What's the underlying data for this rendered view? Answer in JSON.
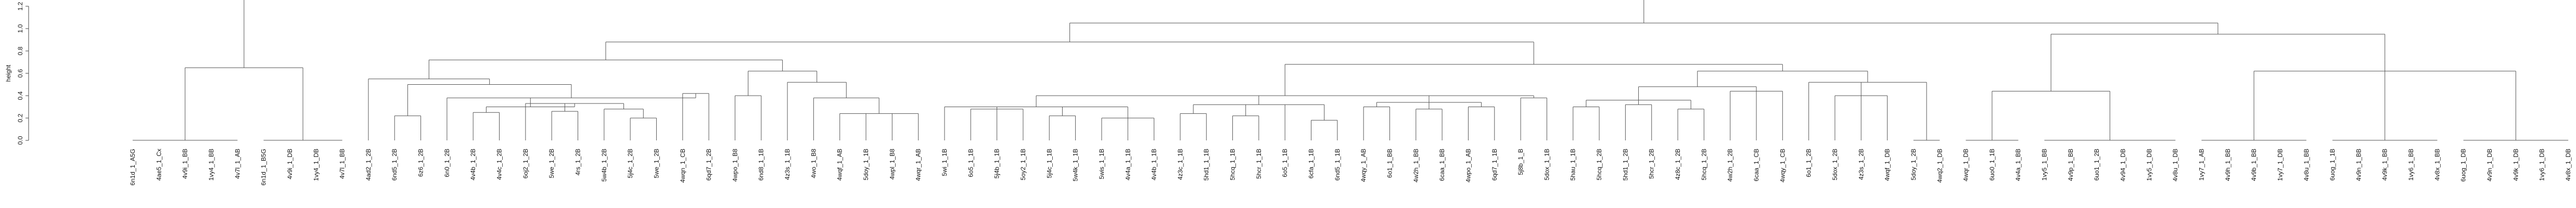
{
  "chart_data": {
    "type": "dendrogram",
    "ylabel": "height",
    "ylim": [
      0,
      1.2
    ],
    "yticks": [
      0.0,
      0.2,
      0.4,
      0.6,
      0.8,
      1.0,
      1.2
    ],
    "leaves": [
      "6n1d_1_A5G",
      "4ae5_1_Cx",
      "4v9i_1_BB",
      "1vy4_1_BB",
      "4v7l_1_AB",
      "6n1d_1_B5G",
      "4v9i_1_DB",
      "1vy4_1_DB",
      "4v7l_1_BB",
      "4ad2_1_2B",
      "6nd5_1_2B",
      "6z6_1_2B",
      "6n0_1_2B",
      "4v4b_1_2B",
      "4v4c_1_2B",
      "6oj2_1_2B",
      "5we_1_2B",
      "4rs_1_2B",
      "5w4b_1_2B",
      "5j4c_1_2B",
      "5we_1_2B",
      "4wqn_1_CB",
      "6qd7_1_2B",
      "4wpo_1_B8",
      "6nd8_1_1B",
      "4z3s_1_1B",
      "4wo_1_B8",
      "4wqf_1_AB",
      "5doy_1_1B",
      "4wpl_1_B8",
      "4wqr_1_AB",
      "5wi_1_1B",
      "6o5_1_1B",
      "5j4b_1_1B",
      "5oy2_1_1B",
      "5j4c_1_1B",
      "5w4k_1_1B",
      "5wis_1_1B",
      "4v4a_1_1B",
      "4v4b_1_1B",
      "4z3c_1_1B",
      "5hd1_1_1B",
      "5hcq_1_1B",
      "5hcr_1_1B",
      "6o5_1_1B",
      "6cfa_1_1B",
      "6nd5_1_1B",
      "4wqy_1_AB",
      "6o1_1_BB",
      "4w2h_1_BB",
      "6caa_1_BB",
      "4wpo_1_AB",
      "6qd7_1_1B",
      "5j8b_1_B",
      "5dox_1_1B",
      "5hau_1_1B",
      "5hcq_1_2B",
      "5hd1_1_2B",
      "5hcr_1_2B",
      "4z8c_1_2B",
      "5hcq_1_2B",
      "4w2h_1_2B",
      "6caa_1_CB",
      "4wqy_1_CB",
      "6o1_1_2B",
      "5dox_1_2B",
      "4z3s_1_2B",
      "4wqf_1_DB",
      "5doy_1_2B",
      "4wq2_1_DB",
      "4wqr_1_DB",
      "6uo0_1_1B",
      "4v4a_1_BB",
      "1vy5_1_BB",
      "4v9p_1_BB",
      "6uo1_1_2B",
      "4v94_1_DB",
      "1vy5_1_DB",
      "4v8u_1_DB",
      "1vy7_1_AB",
      "4v9h_1_BB",
      "4v9b_1_BB",
      "1vy7_1_DB",
      "4v8u_1_BB",
      "6uog_1_1B",
      "4v9n_1_BB",
      "4v9k_1_BB",
      "1vy6_1_BB",
      "4v8x_1_BB",
      "6uog_1_DB",
      "4v9n_1_DB",
      "4v9k_1_DB",
      "1vy6_1_DB",
      "4v8x_1_DB"
    ]
  }
}
